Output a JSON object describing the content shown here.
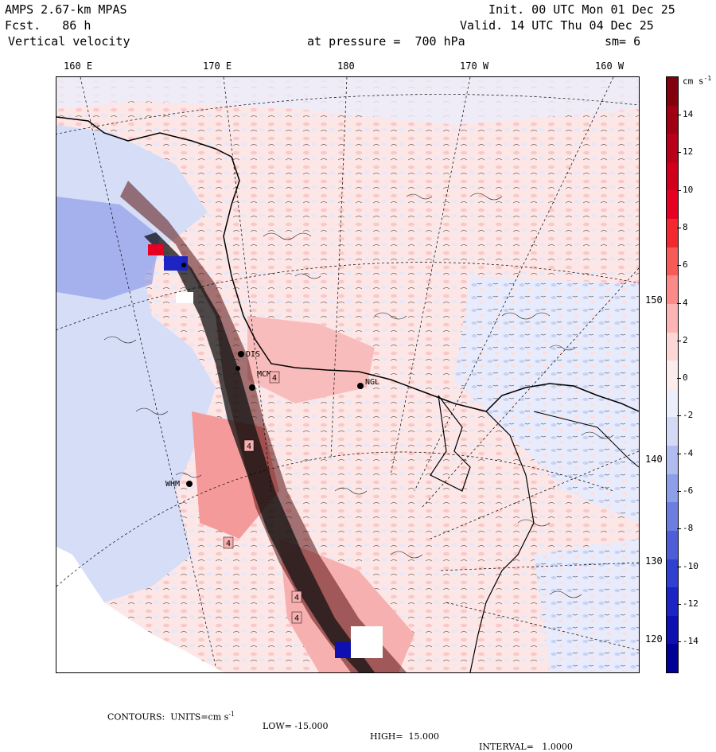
{
  "header": {
    "model": "AMPS 2.67-km MPAS",
    "forecast": "Fcst.   86 h",
    "field": "Vertical velocity",
    "pressure": "at pressure =  700 hPa",
    "init": "Init. 00 UTC Mon 01 Dec 25",
    "valid": "Valid. 14 UTC Thu 04 Dec 25",
    "smoothing": "sm= 6"
  },
  "longitude_labels": [
    "160 E",
    "170 E",
    "180",
    "170 W",
    "160 W"
  ],
  "latitude_labels": [
    "150 W",
    "140 W",
    "130 W",
    "120 W"
  ],
  "stations": [
    "MCM",
    "NGL",
    "WHM",
    "DIS"
  ],
  "colorbar": {
    "unit": "cm s",
    "unit_exp": "-1",
    "labels": [
      "14",
      "12",
      "10",
      "8",
      "6",
      "4",
      "2",
      "0",
      "-2",
      "-4",
      "-6",
      "-8",
      "-10",
      "-12",
      "-14"
    ],
    "colors": [
      "#82000e",
      "#a00012",
      "#b80018",
      "#d0001c",
      "#e60022",
      "#f22a30",
      "#f85a58",
      "#fb8a88",
      "#fdb4b4",
      "#fdd6d6",
      "#fcecec",
      "#eceefb",
      "#d4daf6",
      "#b0bcf0",
      "#8e9ee8",
      "#6c7ee0",
      "#4e5ed8",
      "#3040d0",
      "#1c24c4",
      "#0e10b0",
      "#000094"
    ]
  },
  "footer": {
    "contours": "CONTOURS:  UNITS=cm s",
    "contours_exp": "-1",
    "low": "LOW= -15.000",
    "high": "HIGH=  15.000",
    "interval": "INTERVAL=   1.0000"
  },
  "map_labels": [
    "4",
    "4",
    "4",
    "4",
    "4"
  ]
}
